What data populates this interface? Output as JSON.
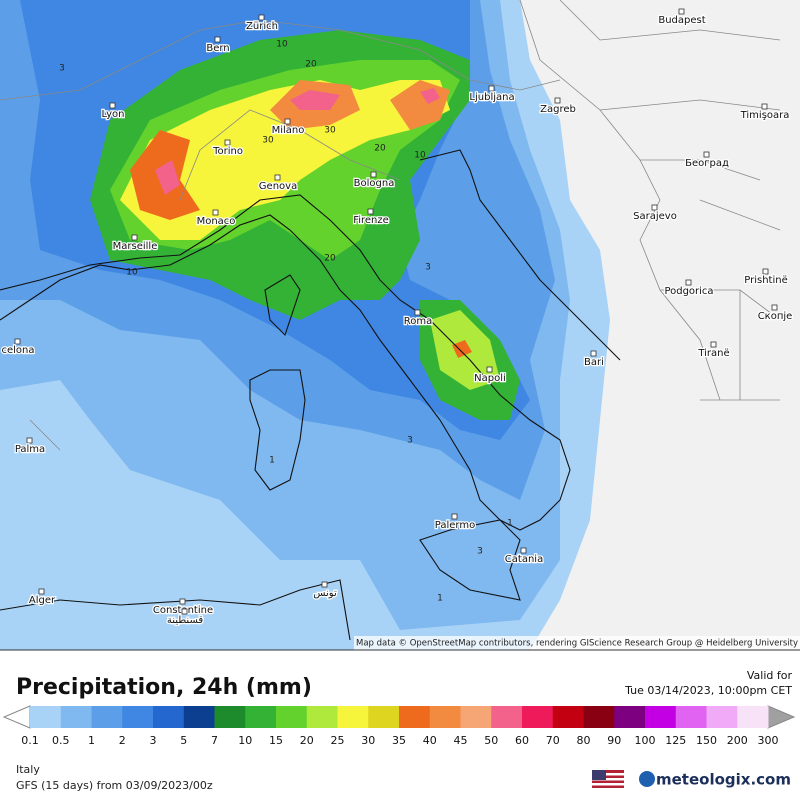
{
  "map": {
    "cities": [
      "Zürich",
      "Budapest",
      "Bern",
      "Lyon",
      "Ljubljana",
      "Zagreb",
      "Timişoara",
      "Milano",
      "Torino",
      "Bologna",
      "Београд",
      "Genova",
      "Monaco",
      "Firenze",
      "Sarajevo",
      "Marseille",
      "Prishtinë",
      "Podgorica",
      "Скопје",
      "Roma",
      "Tiranë",
      "Bari",
      "Napoli",
      "celona",
      "Palma",
      "Palermo",
      "Catania",
      "Alger",
      "Constantine",
      "قسنطينة",
      "تونس"
    ],
    "contours": [
      "10",
      "20",
      "3",
      "30",
      "30",
      "20",
      "10",
      "10",
      "20",
      "3",
      "3",
      "1",
      "1",
      "3",
      "1"
    ],
    "attribution": "Map data © OpenStreetMap contributors, rendering GIScience Research Group @ Heidelberg University"
  },
  "header": {
    "title": "Precipitation, 24h (mm)",
    "valid_label": "Valid for",
    "valid_time": "Tue 03/14/2023, 10:00pm CET"
  },
  "legend": {
    "values": [
      0.1,
      0.5,
      1,
      2,
      3,
      5,
      7,
      10,
      15,
      20,
      25,
      30,
      35,
      40,
      45,
      50,
      60,
      70,
      80,
      90,
      100,
      125,
      150,
      200,
      300
    ],
    "colors": [
      "#a9d3f6",
      "#80b8f0",
      "#5c9fe8",
      "#3f87e2",
      "#2468cf",
      "#0c3f8f",
      "#1d8b2c",
      "#34b236",
      "#63d22c",
      "#aee93c",
      "#f6f53b",
      "#ddd51f",
      "#ee6b1e",
      "#f28a40",
      "#f6a574",
      "#f2628a",
      "#ee1a5a",
      "#c30012",
      "#880012",
      "#7d0080",
      "#c300e3",
      "#e063f2",
      "#f0aaf8",
      "#f8e2f8"
    ],
    "low_color": "#ffffff",
    "high_color": "#a0a0a0"
  },
  "footer": {
    "region": "Italy",
    "model": "GFS (15 days) from  03/09/2023/00z",
    "brand": "meteologix.com"
  }
}
